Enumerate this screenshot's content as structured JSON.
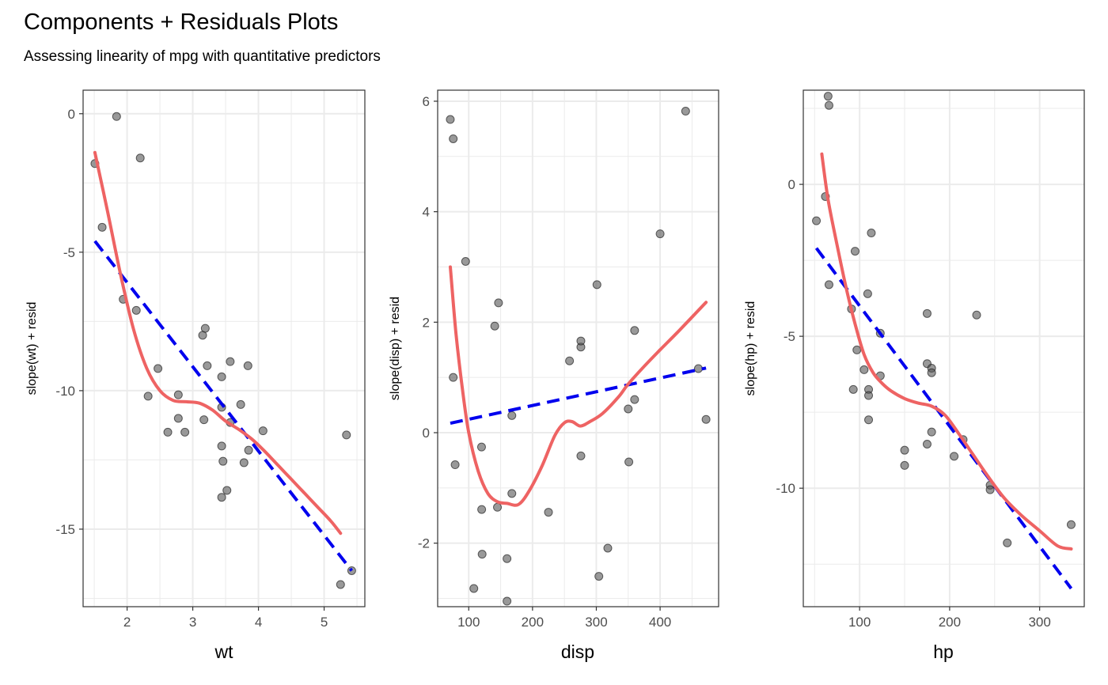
{
  "title": "Components + Residuals Plots",
  "subtitle": "Assessing linearity of mpg with quantitative predictors",
  "colors": {
    "points": "#555555",
    "smooth": "#ee6363",
    "fit": "#0000ee",
    "grid": "#ebebeb",
    "border": "#333333"
  },
  "chart_data": [
    {
      "type": "scatter",
      "xlabel": "wt",
      "ylabel": "slope(wt) + resid",
      "xlim": [
        1.33,
        5.62
      ],
      "ylim": [
        -17.8,
        0.85
      ],
      "xticks": [
        2,
        3,
        4,
        5
      ],
      "yticks": [
        0,
        -5,
        -10,
        -15
      ],
      "points": [
        [
          1.84,
          -0.1
        ],
        [
          1.51,
          -1.8
        ],
        [
          2.2,
          -1.6
        ],
        [
          1.62,
          -4.1
        ],
        [
          1.94,
          -6.7
        ],
        [
          2.14,
          -7.1
        ],
        [
          2.32,
          -10.2
        ],
        [
          2.47,
          -9.2
        ],
        [
          2.62,
          -11.5
        ],
        [
          2.78,
          -10.15
        ],
        [
          2.78,
          -11.0
        ],
        [
          2.88,
          -11.5
        ],
        [
          3.15,
          -8.0
        ],
        [
          3.19,
          -7.75
        ],
        [
          3.17,
          -11.05
        ],
        [
          3.22,
          -9.1
        ],
        [
          3.44,
          -9.5
        ],
        [
          3.44,
          -10.6
        ],
        [
          3.44,
          -12.0
        ],
        [
          3.46,
          -12.55
        ],
        [
          3.44,
          -13.85
        ],
        [
          3.52,
          -13.6
        ],
        [
          3.57,
          -8.95
        ],
        [
          3.57,
          -11.15
        ],
        [
          3.73,
          -10.5
        ],
        [
          3.78,
          -12.6
        ],
        [
          3.84,
          -9.1
        ],
        [
          3.85,
          -12.15
        ],
        [
          4.07,
          -11.45
        ],
        [
          5.25,
          -17.0
        ],
        [
          5.34,
          -11.6
        ],
        [
          5.42,
          -16.5
        ]
      ],
      "smooth": [
        [
          1.51,
          -1.4
        ],
        [
          1.7,
          -3.5
        ],
        [
          1.9,
          -5.8
        ],
        [
          2.1,
          -7.8
        ],
        [
          2.3,
          -9.2
        ],
        [
          2.5,
          -10.0
        ],
        [
          2.7,
          -10.35
        ],
        [
          2.9,
          -10.4
        ],
        [
          3.1,
          -10.45
        ],
        [
          3.3,
          -10.7
        ],
        [
          3.5,
          -11.1
        ],
        [
          3.7,
          -11.4
        ],
        [
          3.9,
          -11.75
        ],
        [
          4.1,
          -12.2
        ],
        [
          4.3,
          -12.7
        ],
        [
          4.5,
          -13.2
        ],
        [
          4.7,
          -13.7
        ],
        [
          4.9,
          -14.2
        ],
        [
          5.1,
          -14.7
        ],
        [
          5.25,
          -15.15
        ]
      ],
      "fit": [
        [
          1.51,
          -4.6
        ],
        [
          5.42,
          -16.5
        ]
      ]
    },
    {
      "type": "scatter",
      "xlabel": "disp",
      "ylabel": "slope(disp) + resid",
      "xlim": [
        51.3,
        491.7
      ],
      "ylim": [
        -3.15,
        6.2
      ],
      "xticks": [
        100,
        200,
        300,
        400
      ],
      "yticks": [
        6,
        4,
        2,
        0,
        -2
      ],
      "points": [
        [
          71.1,
          5.67
        ],
        [
          75.7,
          5.32
        ],
        [
          75.7,
          1.0
        ],
        [
          78.7,
          -0.58
        ],
        [
          95.1,
          3.1
        ],
        [
          108,
          -2.82
        ],
        [
          120.1,
          -0.26
        ],
        [
          120.3,
          -1.39
        ],
        [
          121,
          -2.2
        ],
        [
          140.8,
          1.93
        ],
        [
          145,
          -1.35
        ],
        [
          146.7,
          2.35
        ],
        [
          160,
          -2.28
        ],
        [
          160,
          -3.05
        ],
        [
          167.6,
          0.31
        ],
        [
          167.6,
          -1.1
        ],
        [
          225,
          -1.44
        ],
        [
          258,
          1.3
        ],
        [
          275.8,
          1.55
        ],
        [
          275.8,
          1.66
        ],
        [
          275.8,
          -0.42
        ],
        [
          301,
          2.68
        ],
        [
          304,
          -2.6
        ],
        [
          318,
          -2.09
        ],
        [
          350,
          0.43
        ],
        [
          351,
          -0.53
        ],
        [
          360,
          0.6
        ],
        [
          360,
          1.85
        ],
        [
          400,
          3.6
        ],
        [
          440,
          5.82
        ],
        [
          460,
          1.16
        ],
        [
          472,
          0.24
        ]
      ],
      "smooth": [
        [
          71.1,
          3.0
        ],
        [
          80,
          1.8
        ],
        [
          90,
          0.8
        ],
        [
          100,
          0.0
        ],
        [
          115,
          -0.7
        ],
        [
          130,
          -1.1
        ],
        [
          145,
          -1.25
        ],
        [
          160,
          -1.28
        ],
        [
          178,
          -1.3
        ],
        [
          195,
          -1.05
        ],
        [
          215,
          -0.6
        ],
        [
          235,
          -0.05
        ],
        [
          250,
          0.18
        ],
        [
          262,
          0.2
        ],
        [
          275,
          0.12
        ],
        [
          290,
          0.2
        ],
        [
          310,
          0.35
        ],
        [
          335,
          0.65
        ],
        [
          350,
          0.88
        ],
        [
          375,
          1.2
        ],
        [
          400,
          1.5
        ],
        [
          430,
          1.85
        ],
        [
          472,
          2.36
        ]
      ],
      "fit": [
        [
          71.1,
          0.17
        ],
        [
          472,
          1.17
        ]
      ]
    },
    {
      "type": "scatter",
      "xlabel": "hp",
      "ylabel": "slope(hp) + resid",
      "xlim": [
        37.45,
        349.55
      ],
      "ylim": [
        -13.9,
        3.1
      ],
      "xticks": [
        100,
        200,
        300
      ],
      "yticks": [
        0,
        -5,
        -10
      ],
      "points": [
        [
          52,
          -1.2
        ],
        [
          62,
          -0.4
        ],
        [
          65,
          2.9
        ],
        [
          66,
          2.6
        ],
        [
          66,
          -3.3
        ],
        [
          91,
          -4.1
        ],
        [
          93,
          -6.75
        ],
        [
          95,
          -2.2
        ],
        [
          97,
          -5.45
        ],
        [
          105,
          -6.1
        ],
        [
          109,
          -3.6
        ],
        [
          110,
          -6.75
        ],
        [
          110,
          -6.95
        ],
        [
          110,
          -7.75
        ],
        [
          113,
          -1.6
        ],
        [
          123,
          -4.9
        ],
        [
          123,
          -6.3
        ],
        [
          150,
          -8.75
        ],
        [
          150,
          -9.25
        ],
        [
          175,
          -4.25
        ],
        [
          175,
          -5.9
        ],
        [
          175,
          -8.55
        ],
        [
          180,
          -6.05
        ],
        [
          180,
          -6.2
        ],
        [
          180,
          -8.15
        ],
        [
          205,
          -8.95
        ],
        [
          215,
          -8.4
        ],
        [
          230,
          -4.3
        ],
        [
          245,
          -9.9
        ],
        [
          245,
          -10.05
        ],
        [
          264,
          -11.8
        ],
        [
          335,
          -11.2
        ]
      ],
      "smooth": [
        [
          58,
          1.0
        ],
        [
          65,
          -0.5
        ],
        [
          75,
          -2.0
        ],
        [
          85,
          -3.4
        ],
        [
          95,
          -4.6
        ],
        [
          105,
          -5.6
        ],
        [
          115,
          -6.2
        ],
        [
          125,
          -6.55
        ],
        [
          135,
          -6.8
        ],
        [
          150,
          -7.05
        ],
        [
          165,
          -7.2
        ],
        [
          180,
          -7.3
        ],
        [
          195,
          -7.6
        ],
        [
          210,
          -8.2
        ],
        [
          225,
          -8.85
        ],
        [
          240,
          -9.5
        ],
        [
          260,
          -10.3
        ],
        [
          280,
          -10.9
        ],
        [
          300,
          -11.4
        ],
        [
          320,
          -11.9
        ],
        [
          335,
          -12.0
        ]
      ],
      "fit": [
        [
          52,
          -2.1
        ],
        [
          335,
          -13.3
        ]
      ]
    }
  ]
}
